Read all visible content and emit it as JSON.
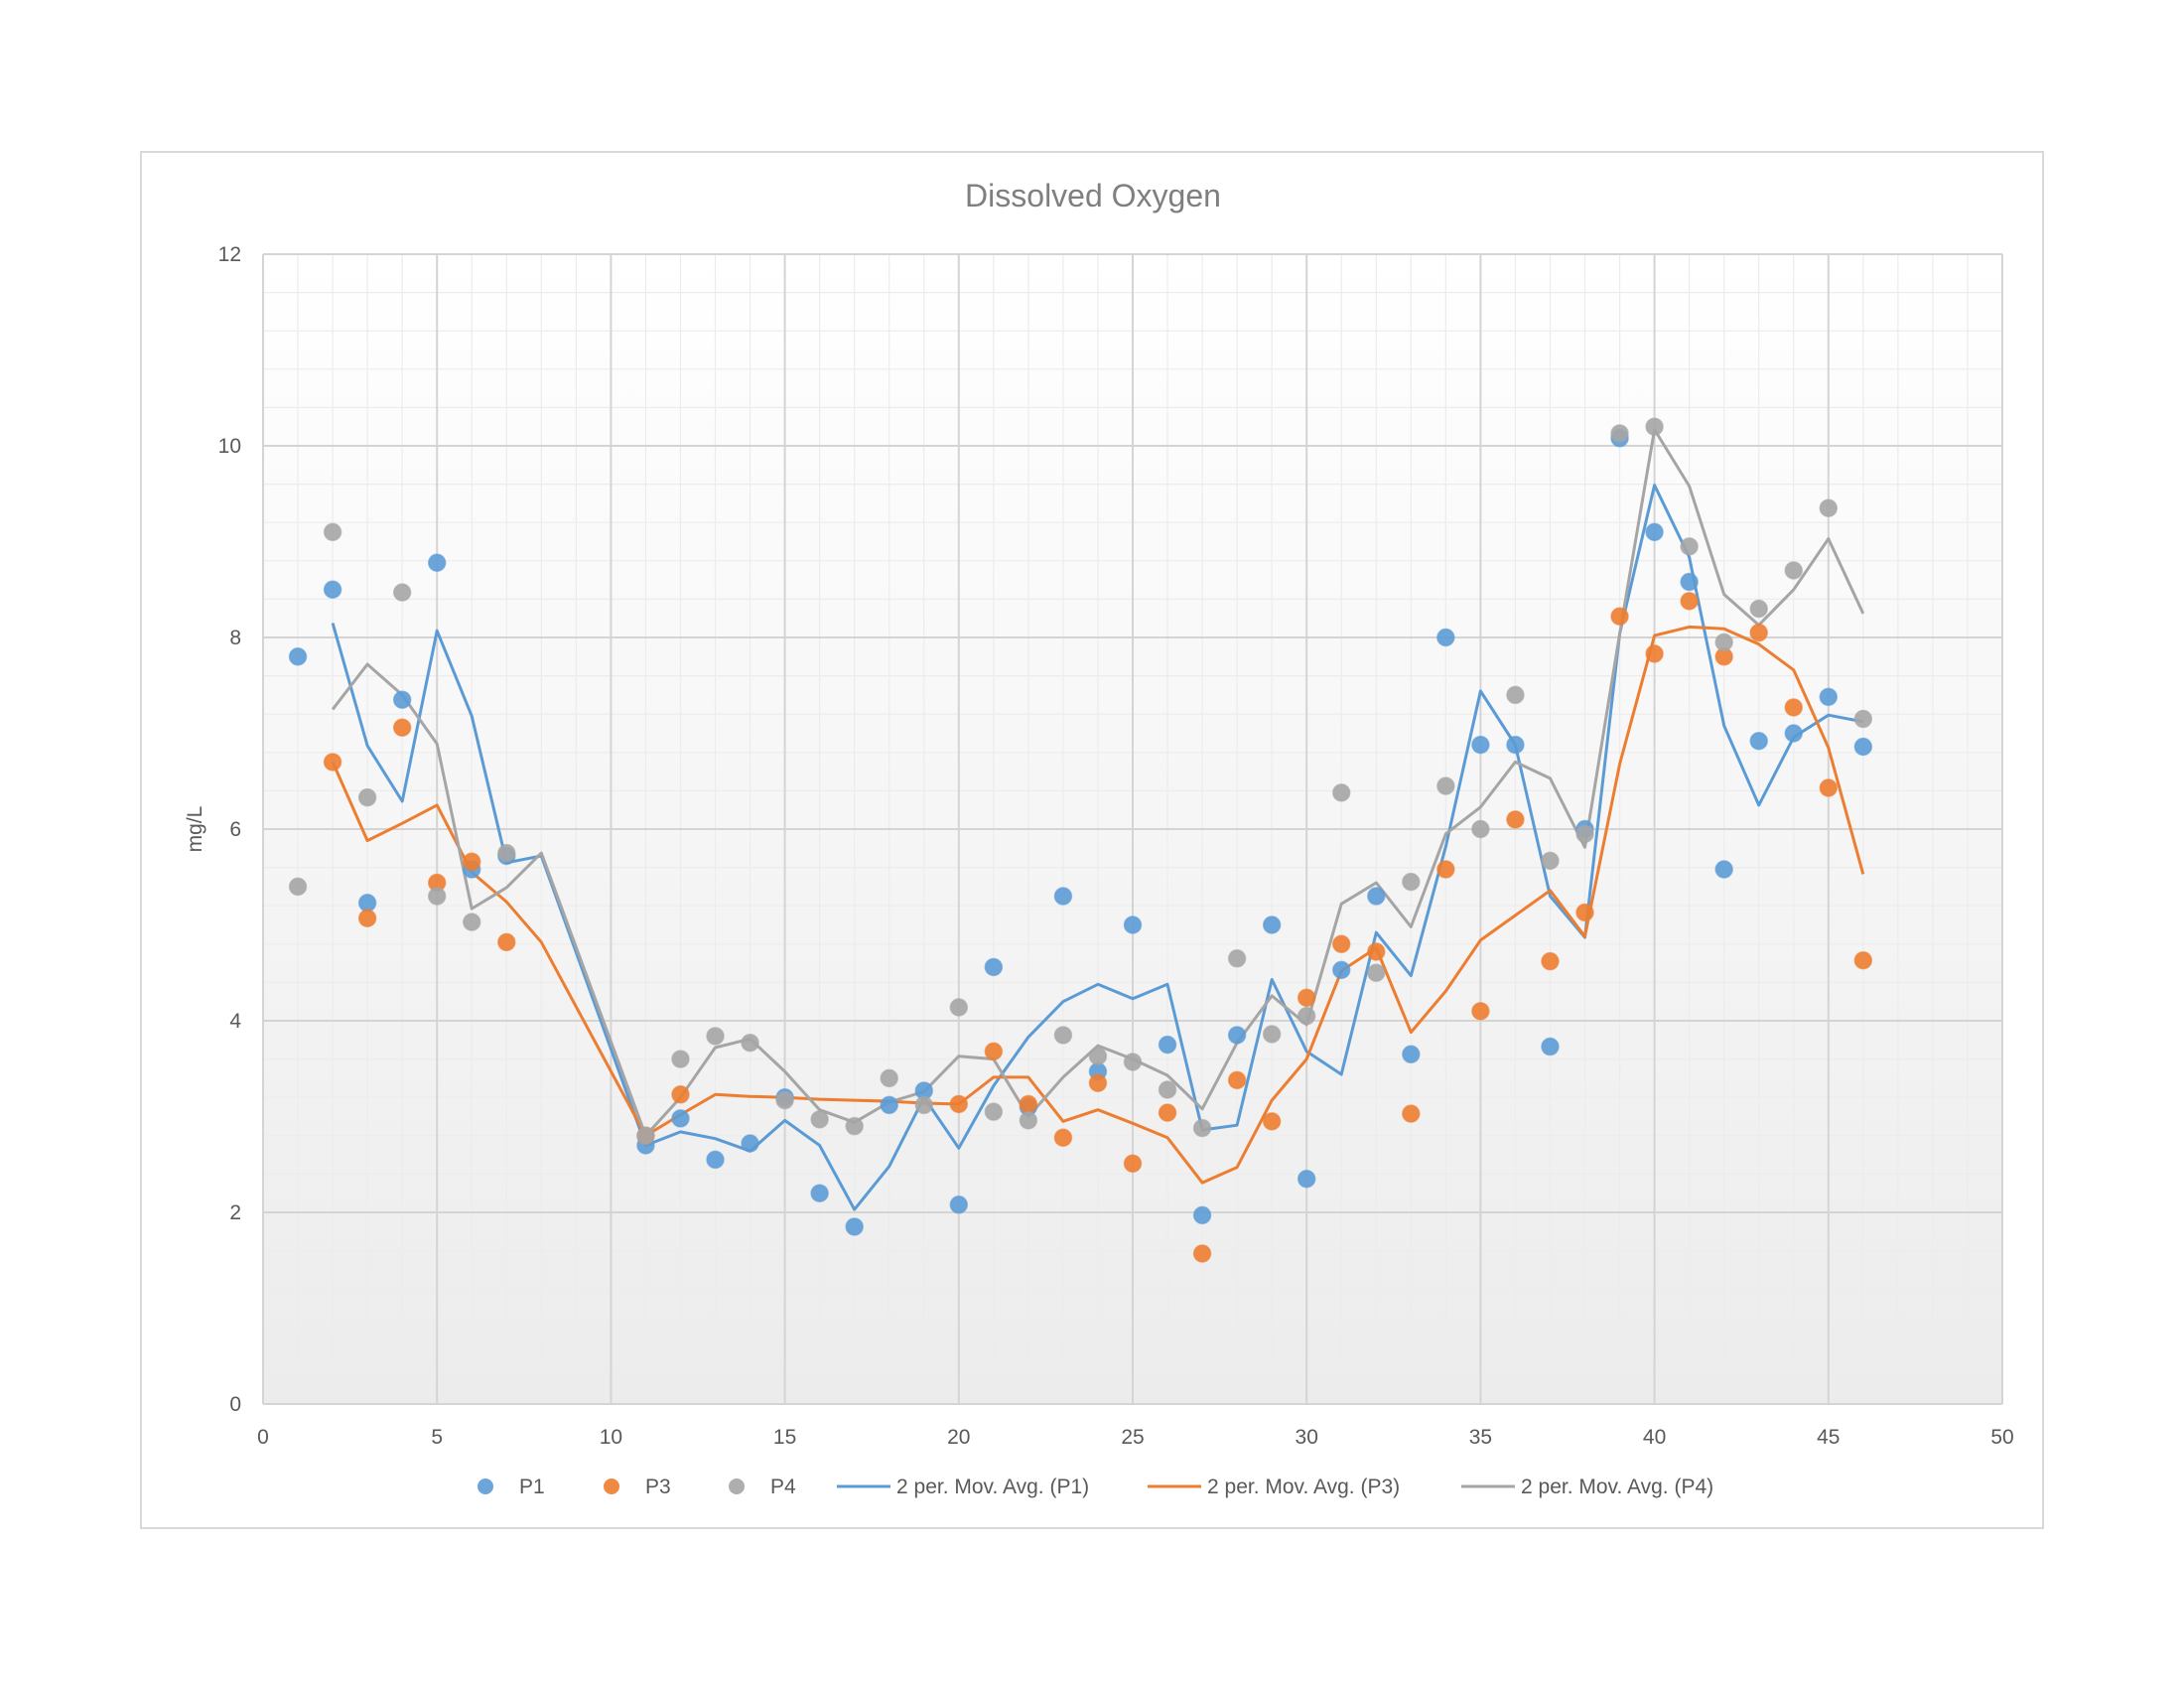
{
  "chart_data": {
    "type": "scatter",
    "title": "Dissolved Oxygen",
    "xlabel": "",
    "ylabel": "mg/L",
    "xlim": [
      0,
      50
    ],
    "ylim": [
      0,
      12
    ],
    "xticks": [
      "0",
      "5",
      "10",
      "15",
      "20",
      "25",
      "30",
      "35",
      "40",
      "45",
      "50"
    ],
    "yticks": [
      "0",
      "2",
      "4",
      "6",
      "8",
      "10",
      "12"
    ],
    "grid": true,
    "legend_position": "bottom",
    "x": [
      1,
      2,
      3,
      4,
      5,
      6,
      7,
      8,
      11,
      12,
      13,
      14,
      15,
      16,
      17,
      18,
      19,
      20,
      21,
      22,
      23,
      24,
      25,
      26,
      27,
      28,
      29,
      30,
      31,
      32,
      33,
      34,
      35,
      36,
      37,
      38,
      39,
      40,
      41,
      42,
      43,
      44,
      45,
      46
    ],
    "series": [
      {
        "name": "P1",
        "color": "#5b9bd5",
        "marker": "circle",
        "values": [
          7.8,
          8.5,
          5.23,
          7.35,
          8.78,
          5.58,
          5.72,
          null,
          2.7,
          2.98,
          2.55,
          2.72,
          3.2,
          2.2,
          1.85,
          3.12,
          3.27,
          2.08,
          4.56,
          3.1,
          5.3,
          3.47,
          5.0,
          3.75,
          1.97,
          3.85,
          5.0,
          2.35,
          4.53,
          5.3,
          3.65,
          8.0,
          6.88,
          6.88,
          3.73,
          6.0,
          10.08,
          9.1,
          8.58,
          5.58,
          6.92,
          7.0,
          7.38,
          6.86
        ]
      },
      {
        "name": "P3",
        "color": "#ed7d31",
        "marker": "circle",
        "values": [
          null,
          6.7,
          5.07,
          7.06,
          5.44,
          5.66,
          4.82,
          null,
          2.8,
          3.23,
          null,
          null,
          null,
          null,
          null,
          null,
          null,
          3.13,
          3.68,
          3.13,
          2.78,
          3.35,
          2.51,
          3.04,
          1.57,
          3.38,
          2.95,
          4.24,
          4.8,
          4.72,
          3.03,
          5.58,
          4.1,
          6.1,
          4.62,
          5.13,
          8.22,
          7.83,
          8.38,
          7.8,
          8.05,
          7.27,
          6.43,
          4.63
        ]
      },
      {
        "name": "P4",
        "color": "#a5a5a5",
        "marker": "circle",
        "values": [
          5.4,
          9.1,
          6.33,
          8.47,
          5.3,
          5.03,
          5.75,
          null,
          2.8,
          3.6,
          3.84,
          3.77,
          3.17,
          2.97,
          2.9,
          3.4,
          3.12,
          4.14,
          3.05,
          2.96,
          3.85,
          3.63,
          3.57,
          3.28,
          2.88,
          4.65,
          3.86,
          4.05,
          6.38,
          4.5,
          5.45,
          6.45,
          6.0,
          7.4,
          5.67,
          5.95,
          10.13,
          10.2,
          8.95,
          7.95,
          8.3,
          8.7,
          9.35,
          7.15
        ]
      },
      {
        "name": "2 per. Mov. Avg. (P1)",
        "color": "#5b9bd5",
        "type": "line",
        "values": [
          null,
          8.15,
          6.87,
          6.29,
          8.07,
          7.18,
          5.65,
          5.72,
          2.7,
          2.84,
          2.77,
          2.64,
          2.96,
          2.7,
          2.03,
          2.48,
          3.2,
          2.67,
          3.32,
          3.83,
          4.2,
          4.38,
          4.23,
          4.38,
          2.86,
          2.91,
          4.43,
          3.68,
          3.44,
          4.92,
          4.47,
          5.82,
          7.44,
          6.88,
          5.3,
          4.87,
          8.04,
          9.59,
          8.84,
          7.08,
          6.25,
          6.96,
          7.19,
          7.12
        ]
      },
      {
        "name": "2 per. Mov. Avg. (P3)",
        "color": "#ed7d31",
        "type": "line",
        "values": [
          null,
          6.7,
          5.88,
          6.06,
          6.25,
          5.55,
          5.24,
          4.82,
          2.8,
          3.02,
          3.23,
          3.21,
          3.2,
          3.18,
          3.17,
          3.16,
          3.14,
          3.13,
          3.41,
          3.41,
          2.95,
          3.07,
          2.93,
          2.78,
          2.31,
          2.47,
          3.17,
          3.6,
          4.52,
          4.76,
          3.88,
          4.31,
          4.84,
          5.1,
          5.36,
          4.88,
          6.68,
          8.02,
          8.11,
          8.09,
          7.93,
          7.66,
          6.85,
          5.53
        ]
      },
      {
        "name": "2 per. Mov. Avg. (P4)",
        "color": "#a5a5a5",
        "type": "line",
        "values": [
          null,
          7.25,
          7.72,
          7.4,
          6.89,
          5.17,
          5.39,
          5.75,
          2.8,
          3.2,
          3.72,
          3.81,
          3.47,
          3.07,
          2.94,
          3.15,
          3.26,
          3.63,
          3.6,
          3.0,
          3.41,
          3.74,
          3.6,
          3.43,
          3.08,
          3.77,
          4.26,
          3.96,
          5.22,
          5.44,
          4.98,
          5.95,
          6.23,
          6.7,
          6.53,
          5.81,
          8.04,
          10.17,
          9.58,
          8.45,
          8.13,
          8.5,
          9.03,
          8.25
        ]
      }
    ],
    "legend": [
      {
        "label": "P1",
        "kind": "marker",
        "color": "#5b9bd5"
      },
      {
        "label": "P3",
        "kind": "marker",
        "color": "#ed7d31"
      },
      {
        "label": "P4",
        "kind": "marker",
        "color": "#a5a5a5"
      },
      {
        "label": "2 per. Mov. Avg. (P1)",
        "kind": "line",
        "color": "#5b9bd5"
      },
      {
        "label": "2 per. Mov. Avg. (P3)",
        "kind": "line",
        "color": "#ed7d31"
      },
      {
        "label": "2 per. Mov. Avg. (P4)",
        "kind": "line",
        "color": "#a5a5a5"
      }
    ]
  }
}
